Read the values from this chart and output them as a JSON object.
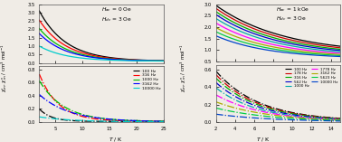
{
  "left_top": {
    "title_lines": [
      "$H_{ac}$ = 0 Oe",
      "$H_{dc}$ = 3 Oe"
    ],
    "ylim": [
      0,
      3.5
    ],
    "yticks": [
      0.0,
      0.5,
      1.0,
      1.5,
      2.0,
      2.5,
      3.0,
      3.5
    ],
    "xlim": [
      2,
      25
    ],
    "xticks": [
      5,
      10,
      15,
      20,
      25
    ],
    "colors": [
      "#000000",
      "#ff0000",
      "#00bb00",
      "#0000ff",
      "#00cccc"
    ],
    "chi_prime_A": [
      3.1,
      2.55,
      2.05,
      1.75,
      1.0
    ],
    "chi_prime_floor": [
      0.1,
      0.1,
      0.1,
      0.1,
      0.1
    ],
    "chi_prime_decay": [
      0.2,
      0.2,
      0.2,
      0.2,
      0.2
    ]
  },
  "left_bottom": {
    "ylim": [
      0,
      0.85
    ],
    "yticks": [
      0.0,
      0.2,
      0.4,
      0.6,
      0.8
    ],
    "xlim": [
      2,
      25
    ],
    "colors": [
      "#000000",
      "#ff0000",
      "#00bb00",
      "#0000ff",
      "#00cccc"
    ],
    "chi_pp_A": [
      0.2,
      0.73,
      0.63,
      0.42,
      0.08
    ],
    "chi_pp_decay": [
      0.45,
      0.28,
      0.22,
      0.18,
      0.16
    ],
    "chi_pp_floor": [
      0.01,
      0.01,
      0.01,
      0.005,
      0.002
    ]
  },
  "right_top": {
    "title_lines": [
      "$H_{ac}$ = 1 kOe",
      "$H_{dc}$ = 3 Oe"
    ],
    "ylim": [
      0.5,
      3.0
    ],
    "yticks": [
      0.5,
      1.0,
      1.5,
      2.0,
      2.5,
      3.0
    ],
    "xlim": [
      2,
      15
    ],
    "xticks": [
      2,
      4,
      6,
      8,
      10,
      12,
      14
    ],
    "colors": [
      "#000000",
      "#cc0000",
      "#00aa00",
      "#0000cc",
      "#00aaaa",
      "#ff00ff",
      "#aaaa00",
      "#00cc44",
      "#0044cc"
    ],
    "chi_prime_A": [
      2.95,
      2.82,
      2.68,
      2.55,
      2.38,
      2.18,
      1.98,
      1.8,
      1.62
    ],
    "chi_prime_floor": [
      0.82,
      0.79,
      0.76,
      0.74,
      0.71,
      0.68,
      0.66,
      0.64,
      0.62
    ],
    "chi_prime_decay": [
      0.14,
      0.145,
      0.15,
      0.155,
      0.16,
      0.165,
      0.17,
      0.175,
      0.18
    ]
  },
  "right_bottom": {
    "ylim": [
      0,
      0.65
    ],
    "yticks": [
      0.0,
      0.2,
      0.4,
      0.6
    ],
    "xlim": [
      2,
      15
    ],
    "colors": [
      "#000000",
      "#cc0000",
      "#00aa00",
      "#0000cc",
      "#00aaaa",
      "#ff00ff",
      "#aaaa00",
      "#00cc44",
      "#0044cc"
    ],
    "chi_pp_A": [
      0.58,
      0.54,
      0.5,
      0.45,
      0.39,
      0.31,
      0.23,
      0.16,
      0.09
    ],
    "chi_pp_decay": [
      0.22,
      0.22,
      0.22,
      0.22,
      0.22,
      0.2,
      0.18,
      0.17,
      0.16
    ],
    "chi_pp_floor": [
      0.01,
      0.01,
      0.01,
      0.008,
      0.006,
      0.004,
      0.003,
      0.002,
      0.001
    ]
  },
  "ylabel_left": "$\\chi_{m}^{\\prime}$, $\\chi_{m}^{\\prime\\prime}$ / cm$^{3}$ mol$^{-1}$",
  "ylabel_right": "$\\chi_{m}^{\\prime}$, $\\chi_{m}^{\\prime\\prime}$ / cm$^{3}$ mol$^{-1}$",
  "xlabel": "$T$ / K",
  "freq_labels_left": [
    "100 Hz",
    "316 Hz",
    "1000 Hz",
    "3162 Hz",
    "10000 Hz"
  ],
  "freq_labels_right_col1": [
    "100 Hz",
    "178 Hz",
    "316 Hz",
    "562 Hz",
    "10000 Hz"
  ],
  "freq_labels_right_col2": [
    "1000 Hz",
    "1778 Hz",
    "3162 Hz",
    "5623 Hz",
    ""
  ],
  "freq_labels_right": [
    "100 Hz",
    "178 Hz",
    "316 Hz",
    "562 Hz",
    "1000 Hz",
    "1778 Hz",
    "3162 Hz",
    "5623 Hz",
    "10000 Hz"
  ],
  "bg_color": "#f0ece6"
}
